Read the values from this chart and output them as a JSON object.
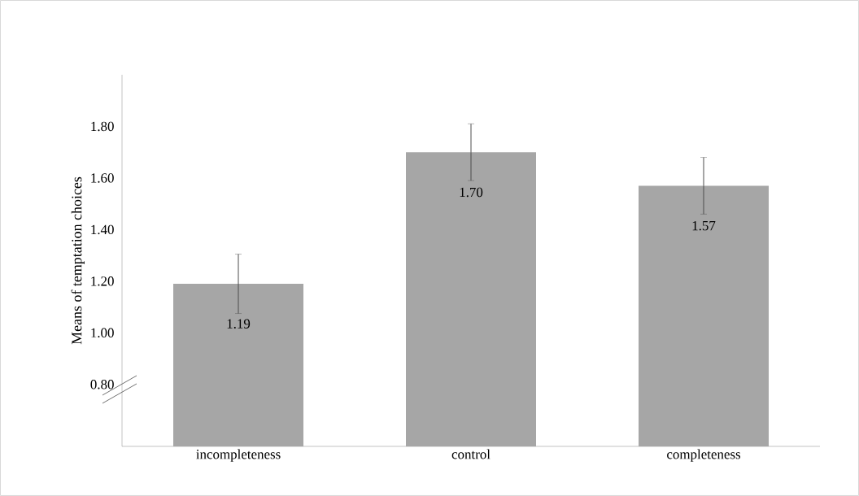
{
  "chart_data": {
    "type": "bar",
    "ylabel": "Means of temptation choices",
    "categories": [
      "incompleteness",
      "control",
      "completeness"
    ],
    "values": [
      1.19,
      1.7,
      1.57
    ],
    "errors": [
      0.115,
      0.11,
      0.11
    ],
    "color": "#a6a6a6",
    "value_labels": [
      "1.19",
      "1.70",
      "1.57"
    ],
    "ylim": [
      0.56,
      2.0
    ],
    "yticks": [
      {
        "value": 0.8,
        "label": "0.80"
      },
      {
        "value": 1.0,
        "label": "1.00"
      },
      {
        "value": 1.2,
        "label": "1.20"
      },
      {
        "value": 1.4,
        "label": "1.40"
      },
      {
        "value": 1.6,
        "label": "1.60"
      },
      {
        "value": 1.8,
        "label": "1.80"
      }
    ],
    "grid": false
  }
}
